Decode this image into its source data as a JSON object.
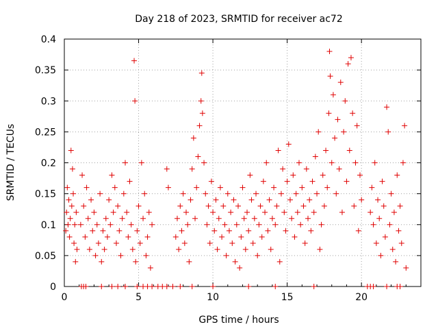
{
  "chart_data": {
    "type": "scatter",
    "title": "Day 218 of 2023, SRMTID for receiver ac72",
    "xlabel": "GPS time / hours",
    "ylabel": "SRMTID / TECUs",
    "xlim": [
      0,
      24
    ],
    "ylim": [
      0,
      0.4
    ],
    "xticks": [
      0,
      5,
      10,
      15,
      20
    ],
    "xtick_labels": [
      "0",
      "5",
      "10",
      "15",
      "20"
    ],
    "yticks": [
      0,
      0.05,
      0.1,
      0.15,
      0.2,
      0.25,
      0.3,
      0.35,
      0.4
    ],
    "ytick_labels": [
      "0",
      "0.05",
      "0.1",
      "0.15",
      "0.2",
      "0.25",
      "0.3",
      "0.35",
      "0.4"
    ],
    "grid": true,
    "marker": "+",
    "color": "#e00000",
    "series": [
      {
        "name": "SRMTID",
        "points": [
          [
            0.1,
            0.09
          ],
          [
            0.15,
            0.12
          ],
          [
            0.2,
            0.16
          ],
          [
            0.25,
            0.1
          ],
          [
            0.3,
            0.14
          ],
          [
            0.35,
            0.08
          ],
          [
            0.4,
            0.11
          ],
          [
            0.45,
            0.22
          ],
          [
            0.5,
            0.13
          ],
          [
            0.55,
            0.19
          ],
          [
            0.6,
            0.15
          ],
          [
            0.65,
            0.07
          ],
          [
            0.7,
            0.1
          ],
          [
            0.75,
            0.04
          ],
          [
            0.8,
            0.12
          ],
          [
            0.85,
            0.06
          ],
          [
            1.1,
            0.1
          ],
          [
            1.2,
            0.18
          ],
          [
            1.3,
            0.13
          ],
          [
            1.4,
            0.08
          ],
          [
            1.5,
            0.16
          ],
          [
            1.6,
            0.11
          ],
          [
            1.7,
            0.06
          ],
          [
            1.8,
            0.14
          ],
          [
            1.9,
            0.09
          ],
          [
            2.0,
            0.12
          ],
          [
            2.1,
            0.05
          ],
          [
            2.2,
            0.1
          ],
          [
            2.3,
            0.07
          ],
          [
            2.4,
            0.15
          ],
          [
            2.5,
            0.04
          ],
          [
            2.6,
            0.09
          ],
          [
            2.7,
            0.06
          ],
          [
            2.8,
            0.11
          ],
          [
            2.9,
            0.08
          ],
          [
            3.0,
            0.14
          ],
          [
            3.1,
            0.1
          ],
          [
            3.2,
            0.18
          ],
          [
            3.3,
            0.12
          ],
          [
            3.4,
            0.16
          ],
          [
            3.5,
            0.07
          ],
          [
            3.6,
            0.13
          ],
          [
            3.7,
            0.09
          ],
          [
            3.8,
            0.05
          ],
          [
            3.9,
            0.11
          ],
          [
            4.0,
            0.15
          ],
          [
            4.1,
            0.2
          ],
          [
            4.2,
            0.12
          ],
          [
            4.3,
            0.08
          ],
          [
            4.4,
            0.17
          ],
          [
            4.5,
            0.1
          ],
          [
            4.6,
            0.06
          ],
          [
            4.7,
            0.365
          ],
          [
            4.75,
            0.3
          ],
          [
            4.8,
            0.04
          ],
          [
            4.9,
            0.09
          ],
          [
            5.0,
            0.13
          ],
          [
            5.1,
            0.07
          ],
          [
            5.2,
            0.2
          ],
          [
            5.3,
            0.11
          ],
          [
            5.4,
            0.15
          ],
          [
            5.5,
            0.05
          ],
          [
            5.6,
            0.08
          ],
          [
            5.7,
            0.12
          ],
          [
            5.8,
            0.03
          ],
          [
            5.9,
            0.1
          ],
          [
            6.9,
            0.19
          ],
          [
            7.0,
            0.16
          ],
          [
            7.5,
            0.08
          ],
          [
            7.6,
            0.11
          ],
          [
            7.7,
            0.06
          ],
          [
            7.8,
            0.13
          ],
          [
            7.9,
            0.09
          ],
          [
            8.0,
            0.15
          ],
          [
            8.1,
            0.07
          ],
          [
            8.2,
            0.12
          ],
          [
            8.3,
            0.1
          ],
          [
            8.4,
            0.04
          ],
          [
            8.5,
            0.14
          ],
          [
            8.6,
            0.19
          ],
          [
            8.7,
            0.24
          ],
          [
            8.8,
            0.11
          ],
          [
            8.9,
            0.16
          ],
          [
            9.0,
            0.21
          ],
          [
            9.1,
            0.26
          ],
          [
            9.2,
            0.3
          ],
          [
            9.25,
            0.345
          ],
          [
            9.3,
            0.28
          ],
          [
            9.4,
            0.2
          ],
          [
            9.5,
            0.15
          ],
          [
            9.6,
            0.1
          ],
          [
            9.7,
            0.13
          ],
          [
            9.8,
            0.07
          ],
          [
            9.9,
            0.17
          ],
          [
            10.0,
            0.12
          ],
          [
            10.1,
            0.09
          ],
          [
            10.2,
            0.14
          ],
          [
            10.3,
            0.06
          ],
          [
            10.4,
            0.11
          ],
          [
            10.5,
            0.16
          ],
          [
            10.6,
            0.08
          ],
          [
            10.7,
            0.13
          ],
          [
            10.8,
            0.1
          ],
          [
            10.9,
            0.05
          ],
          [
            11.0,
            0.15
          ],
          [
            11.1,
            0.09
          ],
          [
            11.2,
            0.12
          ],
          [
            11.3,
            0.07
          ],
          [
            11.4,
            0.14
          ],
          [
            11.5,
            0.04
          ],
          [
            11.6,
            0.1
          ],
          [
            11.7,
            0.13
          ],
          [
            11.8,
            0.03
          ],
          [
            11.9,
            0.08
          ],
          [
            12.0,
            0.16
          ],
          [
            12.1,
            0.11
          ],
          [
            12.2,
            0.06
          ],
          [
            12.3,
            0.12
          ],
          [
            12.4,
            0.09
          ],
          [
            12.5,
            0.18
          ],
          [
            12.6,
            0.14
          ],
          [
            12.7,
            0.07
          ],
          [
            12.8,
            0.11
          ],
          [
            12.9,
            0.15
          ],
          [
            13.0,
            0.05
          ],
          [
            13.1,
            0.1
          ],
          [
            13.2,
            0.13
          ],
          [
            13.3,
            0.08
          ],
          [
            13.4,
            0.17
          ],
          [
            13.5,
            0.12
          ],
          [
            13.6,
            0.2
          ],
          [
            13.7,
            0.09
          ],
          [
            13.8,
            0.14
          ],
          [
            13.9,
            0.06
          ],
          [
            14.0,
            0.11
          ],
          [
            14.1,
            0.16
          ],
          [
            14.2,
            0.1
          ],
          [
            14.3,
            0.13
          ],
          [
            14.4,
            0.22
          ],
          [
            14.5,
            0.04
          ],
          [
            14.6,
            0.15
          ],
          [
            14.7,
            0.19
          ],
          [
            14.8,
            0.12
          ],
          [
            14.9,
            0.09
          ],
          [
            15.0,
            0.17
          ],
          [
            15.1,
            0.23
          ],
          [
            15.2,
            0.14
          ],
          [
            15.3,
            0.11
          ],
          [
            15.4,
            0.18
          ],
          [
            15.5,
            0.08
          ],
          [
            15.6,
            0.15
          ],
          [
            15.7,
            0.12
          ],
          [
            15.8,
            0.2
          ],
          [
            15.9,
            0.1
          ],
          [
            16.0,
            0.16
          ],
          [
            16.1,
            0.13
          ],
          [
            16.2,
            0.07
          ],
          [
            16.3,
            0.19
          ],
          [
            16.4,
            0.11
          ],
          [
            16.5,
            0.14
          ],
          [
            16.6,
            0.09
          ],
          [
            16.7,
            0.17
          ],
          [
            16.8,
            0.12
          ],
          [
            16.9,
            0.21
          ],
          [
            17.0,
            0.15
          ],
          [
            17.1,
            0.25
          ],
          [
            17.2,
            0.06
          ],
          [
            17.3,
            0.1
          ],
          [
            17.4,
            0.18
          ],
          [
            17.5,
            0.13
          ],
          [
            17.6,
            0.22
          ],
          [
            17.7,
            0.16
          ],
          [
            17.8,
            0.28
          ],
          [
            17.85,
            0.38
          ],
          [
            17.9,
            0.34
          ],
          [
            18.0,
            0.2
          ],
          [
            18.1,
            0.31
          ],
          [
            18.2,
            0.24
          ],
          [
            18.3,
            0.15
          ],
          [
            18.4,
            0.27
          ],
          [
            18.5,
            0.19
          ],
          [
            18.6,
            0.33
          ],
          [
            18.7,
            0.12
          ],
          [
            18.8,
            0.25
          ],
          [
            18.9,
            0.3
          ],
          [
            19.0,
            0.17
          ],
          [
            19.1,
            0.36
          ],
          [
            19.2,
            0.22
          ],
          [
            19.3,
            0.37
          ],
          [
            19.4,
            0.28
          ],
          [
            19.5,
            0.13
          ],
          [
            19.6,
            0.2
          ],
          [
            19.7,
            0.26
          ],
          [
            19.8,
            0.09
          ],
          [
            19.9,
            0.18
          ],
          [
            20.0,
            0.14
          ],
          [
            20.6,
            0.12
          ],
          [
            20.7,
            0.16
          ],
          [
            20.8,
            0.1
          ],
          [
            20.9,
            0.2
          ],
          [
            21.0,
            0.07
          ],
          [
            21.1,
            0.14
          ],
          [
            21.2,
            0.11
          ],
          [
            21.3,
            0.05
          ],
          [
            21.4,
            0.17
          ],
          [
            21.5,
            0.13
          ],
          [
            21.6,
            0.08
          ],
          [
            21.7,
            0.29
          ],
          [
            21.8,
            0.25
          ],
          [
            21.9,
            0.1
          ],
          [
            22.0,
            0.15
          ],
          [
            22.1,
            0.06
          ],
          [
            22.2,
            0.12
          ],
          [
            22.3,
            0.04
          ],
          [
            22.4,
            0.18
          ],
          [
            22.5,
            0.09
          ],
          [
            22.6,
            0.13
          ],
          [
            22.7,
            0.07
          ],
          [
            22.8,
            0.2
          ],
          [
            22.9,
            0.26
          ],
          [
            23.0,
            0.03
          ],
          [
            1.15,
            0
          ],
          [
            1.3,
            0
          ],
          [
            1.45,
            0
          ],
          [
            2.5,
            0
          ],
          [
            3.2,
            0
          ],
          [
            3.6,
            0
          ],
          [
            4.1,
            0
          ],
          [
            4.9,
            0
          ],
          [
            5.3,
            0
          ],
          [
            5.6,
            0
          ],
          [
            5.9,
            0
          ],
          [
            6.3,
            0
          ],
          [
            6.6,
            0
          ],
          [
            6.9,
            0
          ],
          [
            7.3,
            0
          ],
          [
            7.8,
            0
          ],
          [
            8.6,
            0
          ],
          [
            10.0,
            0
          ],
          [
            12.4,
            0
          ],
          [
            14.2,
            0
          ],
          [
            16.8,
            0
          ],
          [
            20.4,
            0
          ],
          [
            20.6,
            0
          ],
          [
            20.8,
            0
          ],
          [
            21.7,
            0
          ],
          [
            22.4,
            0
          ],
          [
            22.6,
            0
          ]
        ]
      }
    ]
  }
}
